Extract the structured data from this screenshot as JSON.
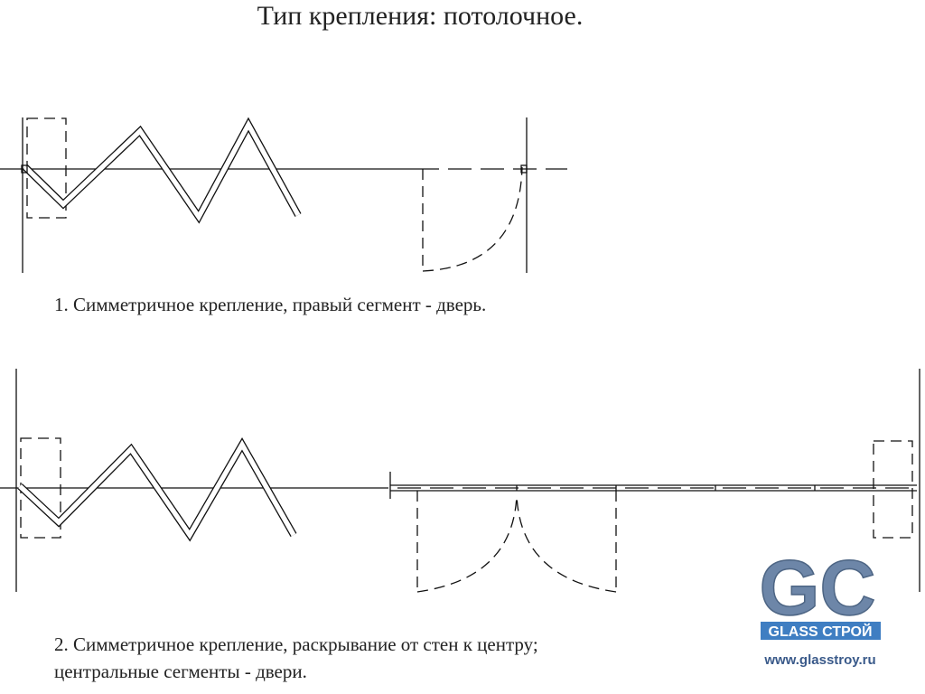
{
  "title": "Тип крепления: потолочное.",
  "diagrams": [
    {
      "caption": "1. Симметричное крепление, правый сегмент - дверь."
    },
    {
      "caption_lines": [
        "2. Симметричное крепление, раскрывание от стен к центру;",
        "центральные сегменты - двери."
      ]
    }
  ],
  "logo": {
    "mark": "GC",
    "name": "GLASS СТРОЙ",
    "url": "www.glasstroy.ru"
  }
}
